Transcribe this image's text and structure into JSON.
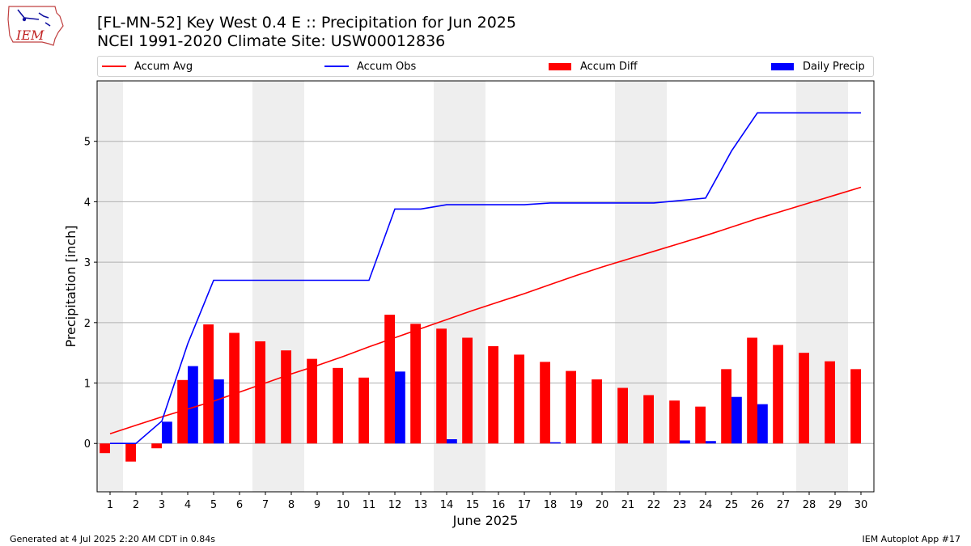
{
  "header": {
    "title_line1": "[FL-MN-52] Key West 0.4 E :: Precipitation for Jun 2025",
    "title_line2": "NCEI 1991-2020 Climate Site: USW00012836",
    "logo_text": "IEM"
  },
  "footer": {
    "left": "Generated at 4 Jul 2025 2:20 AM CDT in 0.84s",
    "right": "IEM Autoplot App #17"
  },
  "colors": {
    "accum_avg": "#ff0000",
    "accum_obs": "#0000ff",
    "accum_diff": "#ff0000",
    "daily_precip": "#0000ff",
    "weekend_shade": "#eeeeee",
    "grid": "#b0b0b0"
  },
  "chart_data": {
    "type": "bar",
    "xlabel": "June 2025",
    "ylabel": "Precipitation [inch]",
    "x": [
      1,
      2,
      3,
      4,
      5,
      6,
      7,
      8,
      9,
      10,
      11,
      12,
      13,
      14,
      15,
      16,
      17,
      18,
      19,
      20,
      21,
      22,
      23,
      24,
      25,
      26,
      27,
      28,
      29,
      30
    ],
    "xlim": [
      0.5,
      30.5
    ],
    "ylim": [
      -0.8,
      6.0
    ],
    "yticks": [
      0,
      1,
      2,
      3,
      4,
      5
    ],
    "grid": "horizontal",
    "legend_position": "top",
    "shaded_days": [
      1,
      7,
      8,
      14,
      15,
      21,
      22,
      28,
      29
    ],
    "series": [
      {
        "name": "Accum Avg",
        "kind": "line",
        "values": [
          0.16,
          0.3,
          0.44,
          0.57,
          0.7,
          0.85,
          1.0,
          1.15,
          1.29,
          1.44,
          1.6,
          1.75,
          1.9,
          2.05,
          2.2,
          2.34,
          2.48,
          2.63,
          2.78,
          2.92,
          3.05,
          3.18,
          3.31,
          3.44,
          3.58,
          3.72,
          3.85,
          3.98,
          4.11,
          4.24
        ]
      },
      {
        "name": "Accum Obs",
        "kind": "line",
        "values": [
          0.0,
          0.0,
          0.37,
          1.65,
          2.7,
          2.7,
          2.7,
          2.7,
          2.7,
          2.7,
          2.7,
          3.88,
          3.88,
          3.95,
          3.95,
          3.95,
          3.95,
          3.98,
          3.98,
          3.98,
          3.98,
          3.98,
          4.02,
          4.06,
          4.84,
          5.47,
          5.47,
          5.47,
          5.47,
          5.47
        ]
      },
      {
        "name": "Accum Diff",
        "kind": "bar",
        "values": [
          -0.16,
          -0.3,
          -0.08,
          1.05,
          1.97,
          1.83,
          1.69,
          1.54,
          1.4,
          1.25,
          1.09,
          2.13,
          1.98,
          1.9,
          1.75,
          1.61,
          1.47,
          1.35,
          1.2,
          1.06,
          0.92,
          0.8,
          0.71,
          0.61,
          1.23,
          1.75,
          1.63,
          1.5,
          1.36,
          1.23
        ]
      },
      {
        "name": "Daily Precip",
        "kind": "bar",
        "values": [
          0.0,
          0.0,
          0.36,
          1.28,
          1.06,
          0.0,
          0.0,
          0.0,
          0.0,
          0.0,
          0.0,
          1.19,
          0.0,
          0.07,
          0.0,
          0.0,
          0.0,
          0.02,
          0.0,
          0.0,
          0.0,
          0.0,
          0.05,
          0.04,
          0.77,
          0.65,
          0.0,
          0.0,
          0.0,
          0.0
        ]
      }
    ]
  }
}
